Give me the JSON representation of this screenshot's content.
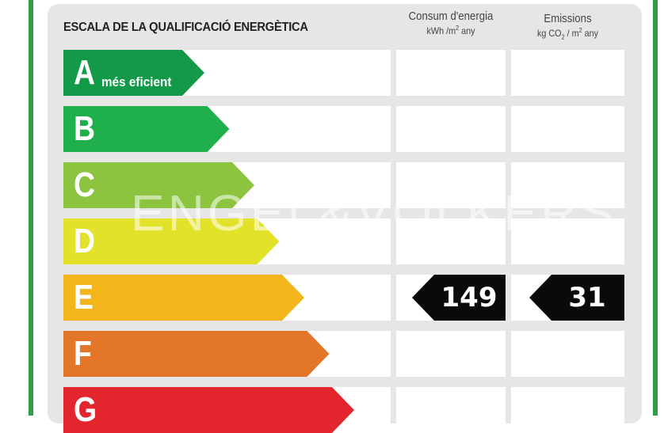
{
  "title": "ESCALA DE LA QUALIFICACIÓ ENERGÈTICA",
  "columns": {
    "consum": {
      "line1": "Consum d'energia",
      "unit_main": "kWh /m",
      "unit_sup": "2",
      "unit_tail": " any"
    },
    "emissions": {
      "line1": "Emissions",
      "unit_a": "kg CO",
      "unit_sub": "2",
      "unit_b": " / m",
      "unit_sup": "2",
      "unit_tail": " any"
    }
  },
  "ratings": [
    {
      "letter": "A",
      "color": "#139a48",
      "label": "més eficient"
    },
    {
      "letter": "B",
      "color": "#1fb04b"
    },
    {
      "letter": "C",
      "color": "#8cc43f"
    },
    {
      "letter": "D",
      "color": "#e2e22a"
    },
    {
      "letter": "E",
      "color": "#f2b51c"
    },
    {
      "letter": "F",
      "color": "#e4762a"
    },
    {
      "letter": "G",
      "color": "#e3262e"
    }
  ],
  "current": {
    "rating": "E",
    "consumption": "149",
    "emissions": "31"
  },
  "watermark": "ENGEL&VÖLKERS"
}
